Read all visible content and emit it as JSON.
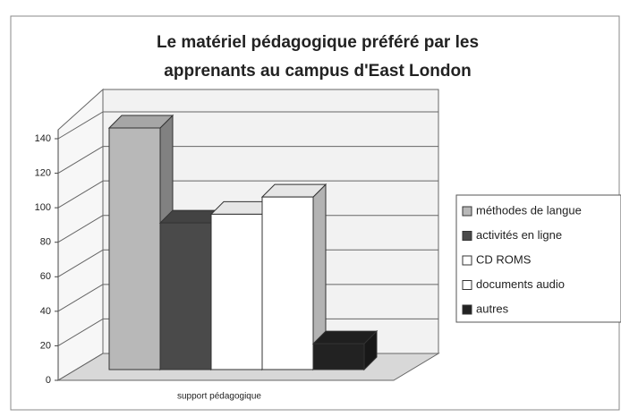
{
  "chart_data": {
    "type": "bar3d",
    "title": [
      "Le matériel pédagogique préféré par les",
      "apprenants au campus d'East London"
    ],
    "categories": [
      "support pédagogique"
    ],
    "series": [
      {
        "name": "méthodes de langue",
        "color": "#b8b8b8",
        "values": [
          140
        ]
      },
      {
        "name": "activités en ligne",
        "color": "#4a4a4a",
        "values": [
          85
        ]
      },
      {
        "name": "CD ROMS",
        "color": "#ffffff",
        "values": [
          90
        ]
      },
      {
        "name": "documents audio",
        "color": "#ffffff",
        "values": [
          100
        ]
      },
      {
        "name": "autres",
        "color": "#222222",
        "values": [
          15
        ]
      }
    ],
    "ylim": [
      0,
      140
    ],
    "yticks": [
      0,
      20,
      40,
      60,
      80,
      100,
      120,
      140
    ],
    "grid": true,
    "legend": "right"
  }
}
